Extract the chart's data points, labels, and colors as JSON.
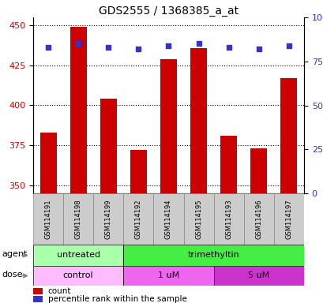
{
  "title": "GDS2555 / 1368385_a_at",
  "samples": [
    "GSM114191",
    "GSM114198",
    "GSM114199",
    "GSM114192",
    "GSM114194",
    "GSM114195",
    "GSM114193",
    "GSM114196",
    "GSM114197"
  ],
  "counts": [
    383,
    449,
    404,
    372,
    429,
    436,
    381,
    373,
    417
  ],
  "percentiles": [
    83,
    85,
    83,
    82,
    84,
    85,
    83,
    82,
    84
  ],
  "ylim_left": [
    345,
    455
  ],
  "ylim_right": [
    0,
    100
  ],
  "yticks_left": [
    350,
    375,
    400,
    425,
    450
  ],
  "yticks_right": [
    0,
    25,
    50,
    75,
    100
  ],
  "bar_color": "#cc0000",
  "dot_color": "#3333cc",
  "bar_bottom": 345,
  "agent_groups": [
    {
      "label": "untreated",
      "start": 0,
      "end": 3,
      "color": "#aaffaa"
    },
    {
      "label": "trimethyltin",
      "start": 3,
      "end": 9,
      "color": "#44ee44"
    }
  ],
  "dose_groups": [
    {
      "label": "control",
      "start": 0,
      "end": 3,
      "color": "#ffbbff"
    },
    {
      "label": "1 uM",
      "start": 3,
      "end": 6,
      "color": "#ee66ee"
    },
    {
      "label": "5 uM",
      "start": 6,
      "end": 9,
      "color": "#cc33cc"
    }
  ],
  "legend_count_color": "#cc0000",
  "legend_percentile_color": "#3333cc",
  "tick_label_color_left": "#cc0000",
  "tick_label_color_right": "#3333cc",
  "sample_area_color": "#cccccc",
  "sample_area_edge": "#888888"
}
